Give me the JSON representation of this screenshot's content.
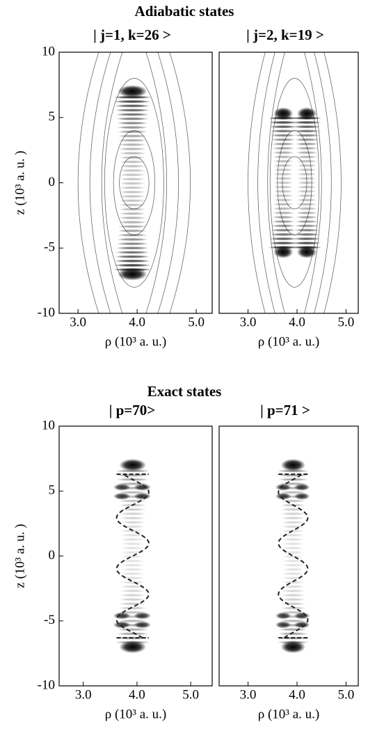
{
  "figure": {
    "top_title": "Adiabatic states",
    "bottom_title": "Exact states"
  },
  "chart_data": [
    {
      "type": "density",
      "title": "| j=1,  k=26 >",
      "xlabel": "ρ (10³ a. u.)",
      "ylabel": "z (10³ a. u. )",
      "xlim": [
        2.68,
        5.27
      ],
      "ylim": [
        -10,
        10
      ],
      "xticks": [
        {
          "value": 3,
          "label": "3.0"
        },
        {
          "value": 4,
          "label": "4.0"
        },
        {
          "value": 5,
          "label": "5.0"
        }
      ],
      "yticks": [
        -10,
        -5,
        0,
        5,
        10
      ]
    },
    {
      "type": "density",
      "title": "| j=2,  k=19 >",
      "xlabel": "ρ (10³ a. u.)",
      "xlim": [
        2.41,
        5.25
      ],
      "ylim": [
        -10,
        10
      ],
      "xticks": [
        {
          "value": 3,
          "label": "3.0"
        },
        {
          "value": 4,
          "label": "4.0"
        },
        {
          "value": 5,
          "label": "5.0"
        }
      ]
    },
    {
      "type": "density",
      "title": "| p=70>",
      "xlabel": "ρ (10³ a. u.)",
      "ylabel": "z (10³ a. u. )",
      "xlim": [
        2.55,
        5.4
      ],
      "ylim": [
        -10,
        10
      ],
      "xticks": [
        {
          "value": 3,
          "label": "3.0"
        },
        {
          "value": 4,
          "label": "4.0"
        },
        {
          "value": 5,
          "label": "5.0"
        }
      ],
      "yticks": [
        -10,
        -5,
        0,
        5,
        10
      ]
    },
    {
      "type": "density",
      "title": "| p=71 >",
      "xlabel": "ρ (10³ a. u.)",
      "xlim": [
        2.41,
        5.25
      ],
      "ylim": [
        -10,
        10
      ],
      "xticks": [
        {
          "value": 3,
          "label": "3.0"
        },
        {
          "value": 4,
          "label": "4.0"
        },
        {
          "value": 5,
          "label": "5.0"
        }
      ]
    }
  ]
}
